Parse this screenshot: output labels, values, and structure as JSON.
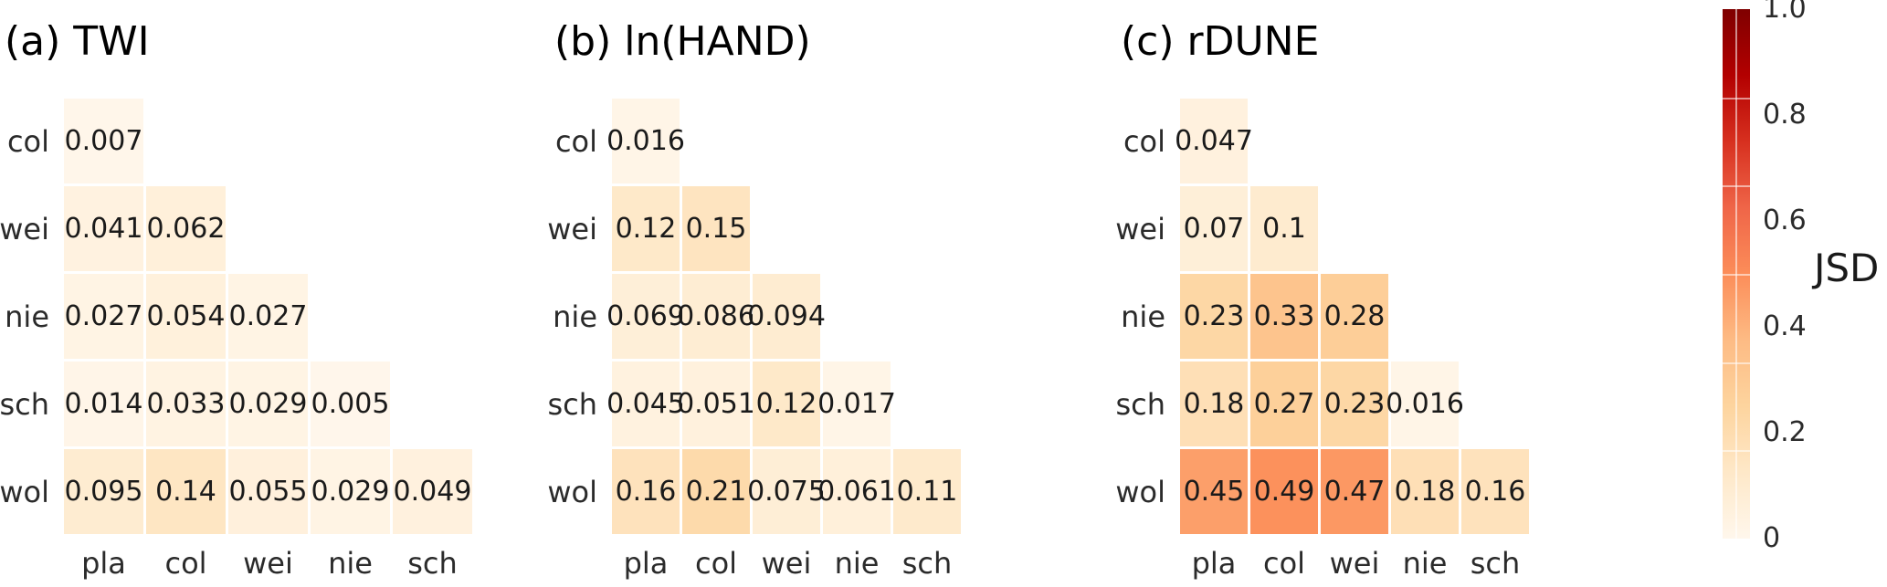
{
  "colorbar": {
    "label": "JSD",
    "ticks": [
      "1.0",
      "0.8",
      "0.6",
      "0.4",
      "0.2",
      "0"
    ],
    "tick_values": [
      1.0,
      0.8,
      0.6,
      0.4,
      0.2,
      0
    ],
    "min": 0,
    "max": 1,
    "colormap": "OrRd",
    "color_stops": [
      "#fff7ec",
      "#fee8c8",
      "#fdd49e",
      "#fdbb84",
      "#fc8d59",
      "#ef6548",
      "#d7301f",
      "#b30000",
      "#7f0000"
    ]
  },
  "chart_data": [
    {
      "type": "heatmap",
      "title": "(a) TWI",
      "rows": [
        "col",
        "wei",
        "nie",
        "sch",
        "wol"
      ],
      "cols": [
        "pla",
        "col",
        "wei",
        "nie",
        "sch"
      ],
      "values": [
        [
          0.007,
          null,
          null,
          null,
          null
        ],
        [
          0.041,
          0.062,
          null,
          null,
          null
        ],
        [
          0.027,
          0.054,
          0.027,
          null,
          null
        ],
        [
          0.014,
          0.033,
          0.029,
          0.005,
          null
        ],
        [
          0.095,
          0.14,
          0.055,
          0.029,
          0.049
        ]
      ]
    },
    {
      "type": "heatmap",
      "title": "(b) ln(HAND)",
      "rows": [
        "col",
        "wei",
        "nie",
        "sch",
        "wol"
      ],
      "cols": [
        "pla",
        "col",
        "wei",
        "nie",
        "sch"
      ],
      "values": [
        [
          0.016,
          null,
          null,
          null,
          null
        ],
        [
          0.12,
          0.15,
          null,
          null,
          null
        ],
        [
          0.069,
          0.086,
          0.094,
          null,
          null
        ],
        [
          0.045,
          0.051,
          0.12,
          0.017,
          null
        ],
        [
          0.16,
          0.21,
          0.075,
          0.061,
          0.11
        ]
      ]
    },
    {
      "type": "heatmap",
      "title": "(c) rDUNE",
      "rows": [
        "col",
        "wei",
        "nie",
        "sch",
        "wol"
      ],
      "cols": [
        "pla",
        "col",
        "wei",
        "nie",
        "sch"
      ],
      "values": [
        [
          0.047,
          null,
          null,
          null,
          null
        ],
        [
          0.07,
          0.1,
          null,
          null,
          null
        ],
        [
          0.23,
          0.33,
          0.28,
          null,
          null
        ],
        [
          0.18,
          0.27,
          0.23,
          0.016,
          null
        ],
        [
          0.45,
          0.49,
          0.47,
          0.18,
          0.16
        ]
      ]
    }
  ]
}
